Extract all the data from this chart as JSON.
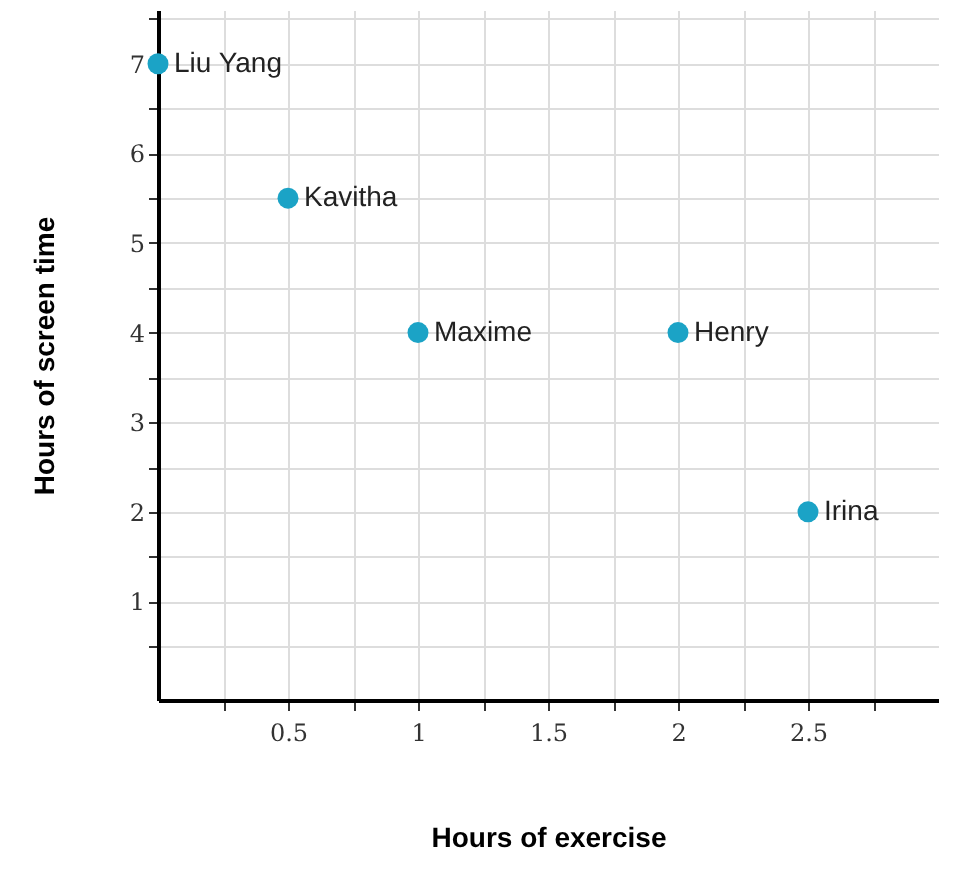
{
  "chart_data": {
    "type": "scatter",
    "xlabel": "Hours of exercise",
    "ylabel": "Hours of screen time",
    "x": [
      0,
      0.5,
      1,
      2,
      2.5
    ],
    "values": [
      7,
      5.5,
      4,
      4,
      2
    ],
    "color": "#1ba3c6",
    "annotations": [
      {
        "text": "Liu Yang",
        "x": 0,
        "y": 7
      },
      {
        "text": "Kavitha",
        "x": 0.5,
        "y": 5.5
      },
      {
        "text": "Maxime",
        "x": 1,
        "y": 4
      },
      {
        "text": "Henry",
        "x": 2,
        "y": 4
      },
      {
        "text": "Irina",
        "x": 2.5,
        "y": 2
      }
    ],
    "xlim": [
      0,
      3
    ],
    "ylim": [
      -0.1,
      7.6
    ],
    "xticks": [
      {
        "value": 0.25,
        "label": null
      },
      0.5,
      {
        "value": 0.75,
        "label": null
      },
      1,
      {
        "value": 1.25,
        "label": null
      },
      1.5,
      {
        "value": 1.75,
        "label": null
      },
      2,
      {
        "value": 2.25,
        "label": null
      },
      2.5,
      {
        "value": 2.75,
        "label": null
      }
    ],
    "yticks": [
      {
        "value": 0.5,
        "label": null
      },
      1,
      {
        "value": 1.5,
        "label": null
      },
      2,
      {
        "value": 2.5,
        "label": null
      },
      3,
      {
        "value": 3.5,
        "label": null
      },
      4,
      {
        "value": 4.5,
        "label": null
      },
      5,
      {
        "value": 5.5,
        "label": null
      },
      6,
      {
        "value": 6.5,
        "label": null
      },
      7,
      {
        "value": 7.5,
        "label": null
      }
    ],
    "grid": true,
    "marker": "circle"
  }
}
